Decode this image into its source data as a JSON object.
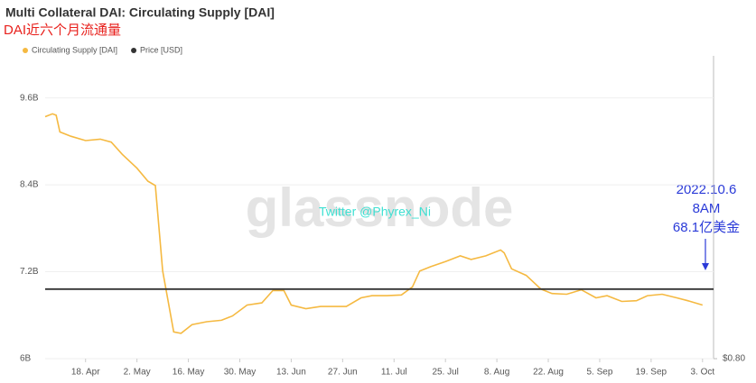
{
  "chart_data": {
    "type": "line",
    "title": "Multi Collateral DAI: Circulating Supply [DAI]",
    "subtitle": "DAI近六个月流通量",
    "watermark": "glassnode",
    "annotations": [
      "Twitter @Phyrex_Ni",
      "2022.10.6",
      "8AM",
      "68.1亿美金"
    ],
    "xlim": [
      "04-07",
      "10-06"
    ],
    "xticks": [
      {
        "value": "04-18",
        "label": "18. Apr"
      },
      {
        "value": "05-02",
        "label": "2. May"
      },
      {
        "value": "05-16",
        "label": "16. May"
      },
      {
        "value": "05-30",
        "label": "30. May"
      },
      {
        "value": "06-13",
        "label": "13. Jun"
      },
      {
        "value": "06-27",
        "label": "27. Jun"
      },
      {
        "value": "07-11",
        "label": "11. Jul"
      },
      {
        "value": "07-25",
        "label": "25. Jul"
      },
      {
        "value": "08-08",
        "label": "8. Aug"
      },
      {
        "value": "08-22",
        "label": "22. Aug"
      },
      {
        "value": "09-05",
        "label": "5. Sep"
      },
      {
        "value": "09-19",
        "label": "19. Sep"
      },
      {
        "value": "10-03",
        "label": "3. Oct"
      }
    ],
    "ylim": [
      6,
      10.18
    ],
    "yticks": [
      {
        "value": 6,
        "label": "6B"
      },
      {
        "value": 7.2,
        "label": "7.2B"
      },
      {
        "value": 8.4,
        "label": "8.4B"
      },
      {
        "value": 9.6,
        "label": "9.6B"
      }
    ],
    "y2lim": [
      0.8,
      1.67
    ],
    "y2ticks": [
      {
        "value": 0.8,
        "label": "$0.80"
      }
    ],
    "legend": "top-left",
    "series": [
      {
        "name": "Circulating Supply [DAI]",
        "color": "#f5b941",
        "x": [
          "04-07",
          "04-09",
          "04-10",
          "04-11",
          "04-14",
          "04-18",
          "04-22",
          "04-25",
          "04-28",
          "05-02",
          "05-05",
          "05-07",
          "05-09",
          "05-12",
          "05-14",
          "05-17",
          "05-21",
          "05-25",
          "05-28",
          "06-01",
          "06-05",
          "06-08",
          "06-11",
          "06-13",
          "06-17",
          "06-21",
          "06-24",
          "06-28",
          "07-02",
          "07-05",
          "07-09",
          "07-13",
          "07-16",
          "07-18",
          "07-21",
          "07-25",
          "07-29",
          "08-01",
          "08-05",
          "08-09",
          "08-10",
          "08-12",
          "08-16",
          "08-20",
          "08-23",
          "08-27",
          "08-31",
          "09-04",
          "09-07",
          "09-11",
          "09-15",
          "09-18",
          "09-22",
          "09-26",
          "09-29",
          "10-03"
        ],
        "values": [
          9.34,
          9.38,
          9.36,
          9.13,
          9.07,
          9.01,
          9.03,
          8.99,
          8.82,
          8.63,
          8.45,
          8.39,
          7.21,
          6.37,
          6.35,
          6.47,
          6.51,
          6.53,
          6.59,
          6.74,
          6.77,
          6.94,
          6.94,
          6.74,
          6.69,
          6.72,
          6.72,
          6.72,
          6.84,
          6.87,
          6.87,
          6.88,
          6.99,
          7.21,
          7.27,
          7.34,
          7.42,
          7.37,
          7.42,
          7.5,
          7.46,
          7.24,
          7.15,
          6.96,
          6.9,
          6.89,
          6.95,
          6.84,
          6.87,
          6.79,
          6.8,
          6.87,
          6.89,
          6.84,
          6.8,
          6.74
        ]
      },
      {
        "name": "Price [USD]",
        "color": "#333333",
        "axis": "y2",
        "x": [
          "04-07",
          "05-16",
          "07-11",
          "08-22",
          "10-06"
        ],
        "values": [
          1.0,
          1.0,
          1.0,
          1.0,
          1.0
        ]
      }
    ]
  }
}
